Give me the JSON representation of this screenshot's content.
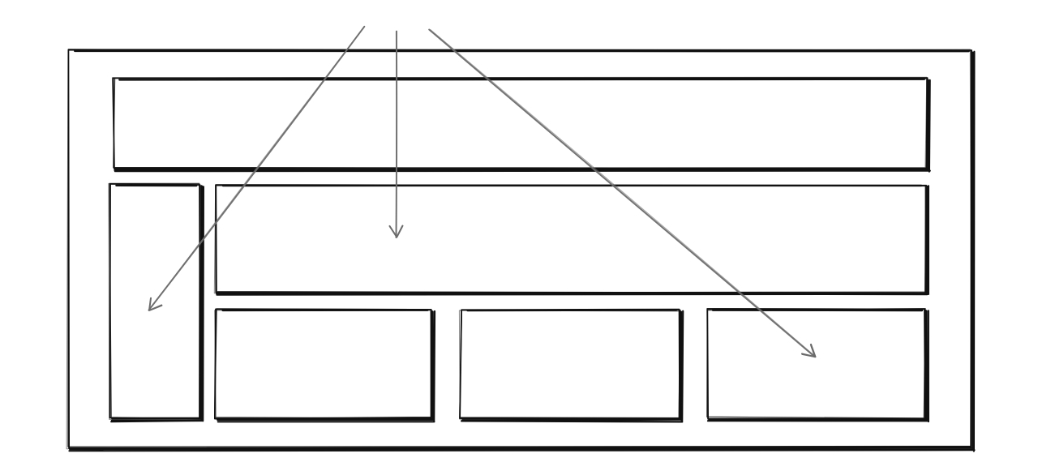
{
  "diagram": {
    "type": "wireframe-layout-sketch",
    "stroke_color": "#111111",
    "arrow_color": "#6b6b6b",
    "background": "#ffffff",
    "panels": [
      {
        "name": "outer-frame-panel"
      },
      {
        "name": "header-panel"
      },
      {
        "name": "sidebar-panel"
      },
      {
        "name": "main-content-panel"
      },
      {
        "name": "card-panel-1"
      },
      {
        "name": "card-panel-2"
      },
      {
        "name": "card-panel-3"
      }
    ],
    "arrows": [
      {
        "name": "arrow-to-sidebar",
        "target": "sidebar-panel"
      },
      {
        "name": "arrow-to-main-content",
        "target": "main-content-panel"
      },
      {
        "name": "arrow-to-card-3",
        "target": "card-panel-3"
      }
    ]
  }
}
